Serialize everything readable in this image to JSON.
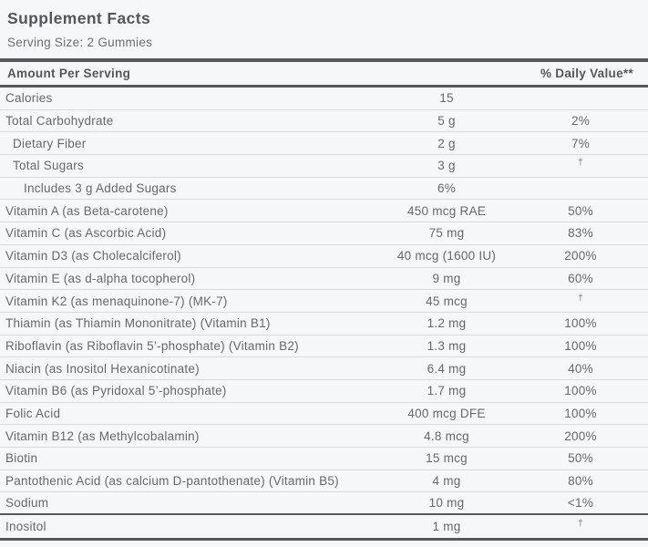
{
  "label": {
    "title": "Supplement Facts",
    "serving_size": "Serving Size: 2 Gummies"
  },
  "table": {
    "columns": {
      "amount_header": "Amount Per Serving",
      "daily_value_header": "% Daily Value**"
    },
    "footnote_symbol": "†",
    "rows": [
      {
        "name": "Calories",
        "amount": "15",
        "dv": "",
        "indent": 0
      },
      {
        "name": "Total Carbohydrate",
        "amount": "5 g",
        "dv": "2%",
        "indent": 0
      },
      {
        "name": "Dietary Fiber",
        "amount": "2 g",
        "dv": "7%",
        "indent": 1
      },
      {
        "name": "Total Sugars",
        "amount": "3 g",
        "dv": "†",
        "indent": 1
      },
      {
        "name": "Includes 3 g Added Sugars",
        "amount": "6%",
        "dv": "",
        "indent": 2
      },
      {
        "name": "Vitamin A (as Beta-carotene)",
        "amount": "450 mcg RAE",
        "dv": "50%",
        "indent": 0
      },
      {
        "name": "Vitamin C (as Ascorbic Acid)",
        "amount": "75 mg",
        "dv": "83%",
        "indent": 0
      },
      {
        "name": "Vitamin D3 (as Cholecalciferol)",
        "amount": "40 mcg (1600 IU)",
        "dv": "200%",
        "indent": 0
      },
      {
        "name": "Vitamin E (as d-alpha tocopherol)",
        "amount": "9 mg",
        "dv": "60%",
        "indent": 0
      },
      {
        "name": "Vitamin K2 (as menaquinone-7) (MK-7)",
        "amount": "45 mcg",
        "dv": "†",
        "indent": 0
      },
      {
        "name": "Thiamin (as Thiamin Mononitrate) (Vitamin B1)",
        "amount": "1.2 mg",
        "dv": "100%",
        "indent": 0
      },
      {
        "name": "Riboflavin (as Riboflavin 5’-phosphate) (Vitamin B2)",
        "amount": "1.3 mg",
        "dv": "100%",
        "indent": 0
      },
      {
        "name": "Niacin (as Inositol Hexanicotinate)",
        "amount": "6.4 mg",
        "dv": "40%",
        "indent": 0
      },
      {
        "name": "Vitamin B6 (as Pyridoxal 5’-phosphate)",
        "amount": "1.7 mg",
        "dv": "100%",
        "indent": 0
      },
      {
        "name": "Folic Acid",
        "amount": "400 mcg DFE",
        "dv": "100%",
        "indent": 0
      },
      {
        "name": "Vitamin B12 (as Methylcobalamin)",
        "amount": "4.8 mcg",
        "dv": "200%",
        "indent": 0
      },
      {
        "name": "Biotin",
        "amount": "15 mcg",
        "dv": "50%",
        "indent": 0
      },
      {
        "name": "Pantothenic Acid (as calcium D-pantothenate) (Vitamin B5)",
        "amount": "4 mg",
        "dv": "80%",
        "indent": 0
      },
      {
        "name": "Sodium",
        "amount": "10 mg",
        "dv": "<1%",
        "indent": 0,
        "thick_bottom": true
      },
      {
        "name": "Inositol",
        "amount": "1 mg",
        "dv": "†",
        "indent": 0
      }
    ]
  },
  "colors": {
    "background": "#f6f7f8",
    "bar_dark": "#57585b",
    "title_text": "#55565a",
    "body_text": "#66686c",
    "thin_separator": "#d9dadc"
  }
}
